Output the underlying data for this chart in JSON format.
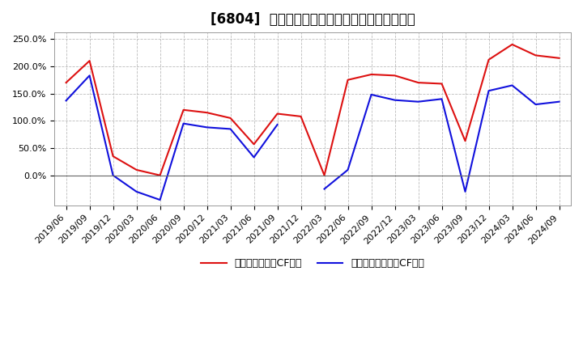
{
  "title": "[6804]  有利子負債キャッシュフロー比率の推移",
  "legend1": "有利子負債営業CF比率",
  "legend2": "有利子負債フリーCF比率",
  "x_labels": [
    "2019/06",
    "2019/09",
    "2019/12",
    "2020/03",
    "2020/06",
    "2020/09",
    "2020/12",
    "2021/03",
    "2021/06",
    "2021/09",
    "2021/12",
    "2022/03",
    "2022/06",
    "2022/09",
    "2022/12",
    "2023/03",
    "2023/06",
    "2023/09",
    "2023/12",
    "2024/03",
    "2024/06",
    "2024/09"
  ],
  "red_values": [
    170,
    210,
    35,
    10,
    0,
    120,
    115,
    105,
    57,
    113,
    108,
    0,
    175,
    185,
    183,
    170,
    168,
    63,
    212,
    240,
    220,
    215
  ],
  "blue_values": [
    137,
    183,
    0,
    -30,
    -45,
    95,
    88,
    85,
    33,
    93,
    null,
    -25,
    10,
    148,
    138,
    135,
    140,
    -30,
    155,
    165,
    130,
    135
  ],
  "red_color": "#dd1111",
  "blue_color": "#1111dd",
  "background_color": "#ffffff",
  "plot_bg_color": "#ffffff",
  "grid_color": "#bbbbbb",
  "ylim_min": -55,
  "ylim_max": 262,
  "yticks": [
    0,
    50,
    100,
    150,
    200,
    250
  ],
  "ytick_labels": [
    "0.0%",
    "50.0%",
    "100.0%",
    "150.0%",
    "200.0%",
    "250.0%"
  ],
  "title_fontsize": 12,
  "tick_fontsize": 8,
  "legend_fontsize": 9
}
